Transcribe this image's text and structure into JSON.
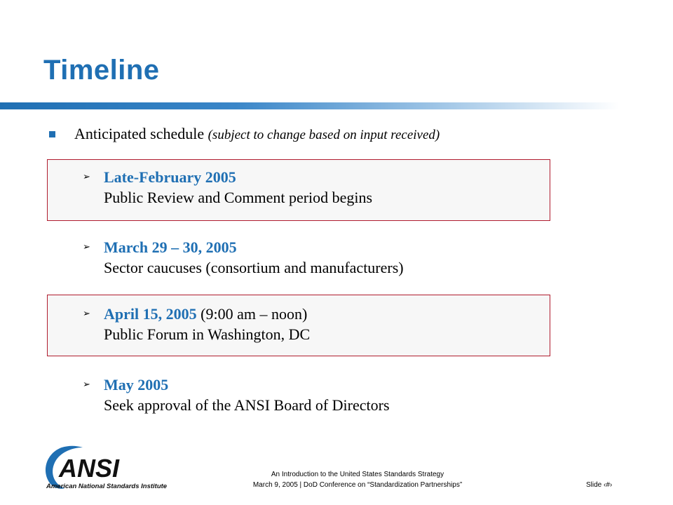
{
  "slide": {
    "title": "Timeline",
    "main_bullet": {
      "text": "Anticipated schedule ",
      "note": "(subject to change based on input received)"
    },
    "items": [
      {
        "date": "Late-February 2005",
        "extra": "",
        "desc": "Public Review and Comment period begins",
        "highlighted": true
      },
      {
        "date": "March 29 – 30, 2005",
        "extra": "",
        "desc": "Sector caucuses (consortium and manufacturers)",
        "highlighted": false
      },
      {
        "date": "April 15, 2005",
        "extra": " (9:00 am – noon)",
        "desc": "Public Forum in Washington, DC",
        "highlighted": true
      },
      {
        "date": "May 2005",
        "extra": "",
        "desc": "Seek approval of the ANSI Board of Directors",
        "highlighted": false
      }
    ]
  },
  "logo": {
    "wordmark": "ANSI",
    "subtitle": "American National Standards Institute",
    "colors": {
      "swoosh": "#1f6fb3",
      "text": "#111111"
    }
  },
  "footer": {
    "line1": "An Introduction to the United States Standards Strategy",
    "line2": "March 9, 2005 | DoD Conference on “Standardization Partnerships”",
    "slide_label": "Slide ‹#›"
  },
  "colors": {
    "title": "#1f6fb3",
    "accent_border": "#b01c2e",
    "box_fill": "#f7f7f7"
  }
}
